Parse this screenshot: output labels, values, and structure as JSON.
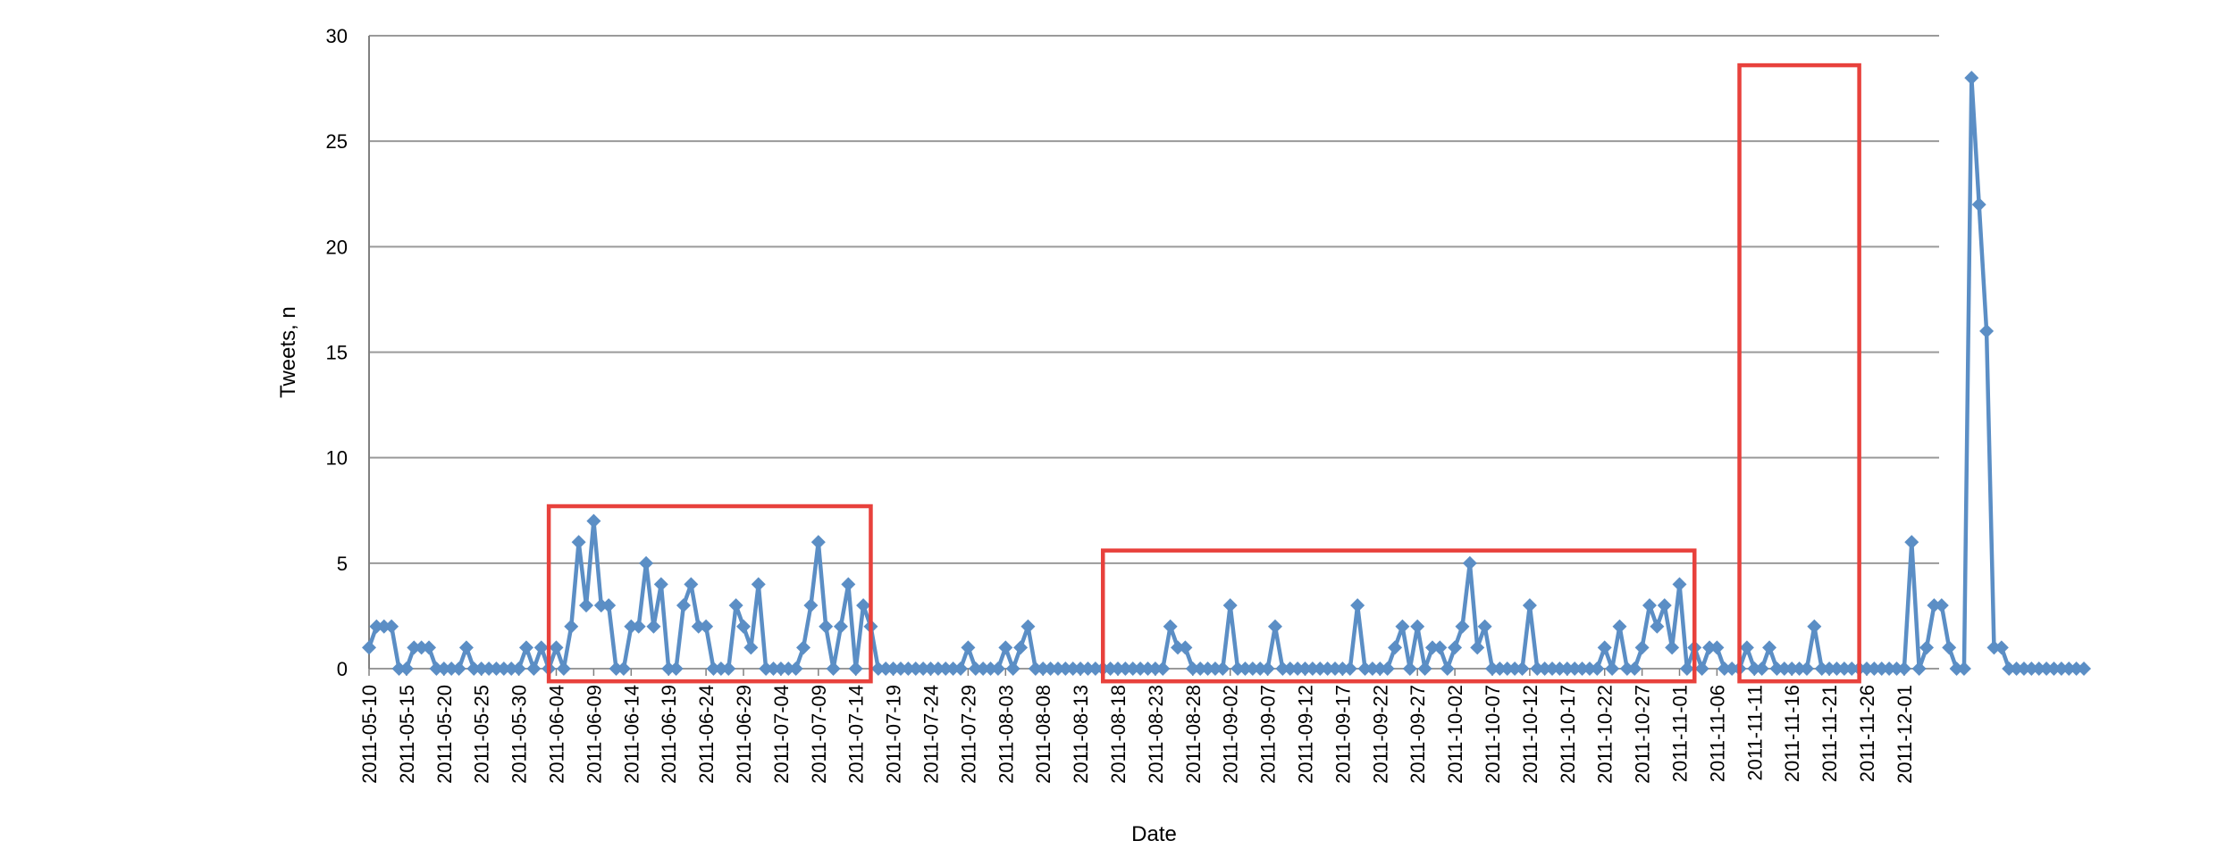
{
  "chart_data": {
    "type": "line",
    "title": "",
    "xlabel": "Date",
    "ylabel": "Tweets, n",
    "ylim": [
      0,
      30
    ],
    "yticks": [
      0,
      5,
      10,
      15,
      20,
      25,
      30
    ],
    "grid": true,
    "legend": "none",
    "x_start": "2011-05-10",
    "xtick_labels": [
      "2011-05-10",
      "2011-05-15",
      "2011-05-20",
      "2011-05-25",
      "2011-05-30",
      "2011-06-04",
      "2011-06-09",
      "2011-06-14",
      "2011-06-19",
      "2011-06-24",
      "2011-06-29",
      "2011-07-04",
      "2011-07-09",
      "2011-07-14",
      "2011-07-19",
      "2011-07-24",
      "2011-07-29",
      "2011-08-03",
      "2011-08-08",
      "2011-08-13",
      "2011-08-18",
      "2011-08-23",
      "2011-08-28",
      "2011-09-02",
      "2011-09-07",
      "2011-09-12",
      "2011-09-17",
      "2011-09-22",
      "2011-09-27",
      "2011-10-02",
      "2011-10-07",
      "2011-10-12",
      "2011-10-17",
      "2011-10-22",
      "2011-10-27",
      "2011-11-01",
      "2011-11-06",
      "2011-11-11",
      "2011-11-16",
      "2011-11-21",
      "2011-11-26",
      "2011-12-01"
    ],
    "series": [
      {
        "color": "#5b8ec5",
        "marker": "diamond",
        "values": [
          1,
          2,
          2,
          2,
          0,
          0,
          1,
          1,
          1,
          0,
          0,
          0,
          0,
          1,
          0,
          0,
          0,
          0,
          0,
          0,
          0,
          1,
          0,
          1,
          0,
          1,
          0,
          2,
          6,
          3,
          7,
          3,
          3,
          0,
          0,
          2,
          2,
          5,
          2,
          4,
          0,
          0,
          3,
          4,
          2,
          2,
          0,
          0,
          0,
          3,
          2,
          1,
          4,
          0,
          0,
          0,
          0,
          0,
          1,
          3,
          6,
          2,
          0,
          2,
          4,
          0,
          3,
          2,
          0,
          0,
          0,
          0,
          0,
          0,
          0,
          0,
          0,
          0,
          0,
          0,
          1,
          0,
          0,
          0,
          0,
          1,
          0,
          1,
          2,
          0,
          0,
          0,
          0,
          0,
          0,
          0,
          0,
          0,
          0,
          0,
          0,
          0,
          0,
          0,
          0,
          0,
          0,
          2,
          1,
          1,
          0,
          0,
          0,
          0,
          0,
          3,
          0,
          0,
          0,
          0,
          0,
          2,
          0,
          0,
          0,
          0,
          0,
          0,
          0,
          0,
          0,
          0,
          3,
          0,
          0,
          0,
          0,
          1,
          2,
          0,
          2,
          0,
          1,
          1,
          0,
          1,
          2,
          5,
          1,
          2,
          0,
          0,
          0,
          0,
          0,
          3,
          0,
          0,
          0,
          0,
          0,
          0,
          0,
          0,
          0,
          1,
          0,
          2,
          0,
          0,
          1,
          3,
          2,
          3,
          1,
          4,
          0,
          1,
          0,
          1,
          1,
          0,
          0,
          0,
          1,
          0,
          0,
          1,
          0,
          0,
          0,
          0,
          0,
          2,
          0,
          0,
          0,
          0,
          0,
          0,
          0,
          0,
          0,
          0,
          0,
          0,
          6,
          0,
          1,
          3,
          3,
          1,
          0,
          0,
          28,
          22,
          16,
          1,
          1,
          0,
          0,
          0,
          0,
          0,
          0,
          0,
          0,
          0,
          0,
          0
        ]
      }
    ],
    "highlight_boxes": [
      {
        "x_from": "2011-06-03",
        "x_to": "2011-07-16",
        "y_top": 7.7,
        "y_bottom": -0.6,
        "color": "#e8413c"
      },
      {
        "x_from": "2011-08-16",
        "x_to": "2011-11-03",
        "y_top": 5.6,
        "y_bottom": -0.6,
        "color": "#e8413c"
      },
      {
        "x_from": "2011-11-09",
        "x_to": "2011-11-25",
        "y_top": 28.6,
        "y_bottom": -0.6,
        "color": "#e8413c"
      }
    ]
  }
}
